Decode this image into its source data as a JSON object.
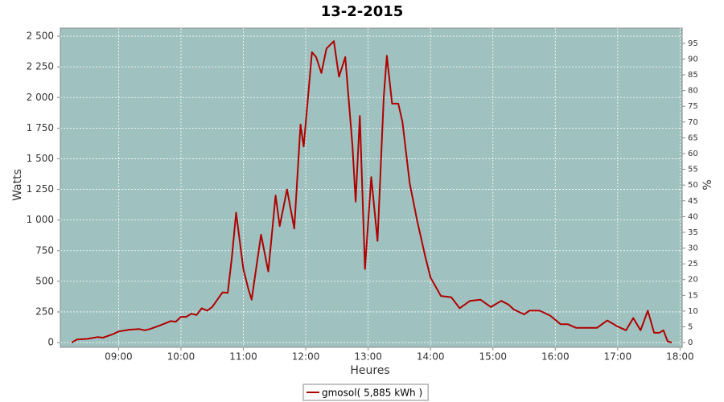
{
  "chart_data": {
    "type": "line",
    "title": "13-2-2015",
    "x_label": "Heures",
    "y_label": "Watts",
    "y2_label": "%",
    "x": [
      "08:15",
      "08:20",
      "08:30",
      "08:40",
      "08:45",
      "08:55",
      "09:00",
      "09:10",
      "09:20",
      "09:25",
      "09:30",
      "09:40",
      "09:50",
      "09:55",
      "10:00",
      "10:05",
      "10:10",
      "10:15",
      "10:20",
      "10:25",
      "10:30",
      "10:35",
      "10:40",
      "10:45",
      "10:49",
      "10:53",
      "11:00",
      "11:05",
      "11:08",
      "11:17",
      "11:24",
      "11:31",
      "11:35",
      "11:42",
      "11:49",
      "11:55",
      "11:58",
      "12:06",
      "12:10",
      "12:15",
      "12:20",
      "12:27",
      "12:32",
      "12:38",
      "12:45",
      "12:48",
      "12:52",
      "12:57",
      "13:03",
      "13:09",
      "13:15",
      "13:18",
      "13:23",
      "13:29",
      "13:33",
      "13:40",
      "13:47",
      "13:55",
      "14:00",
      "14:10",
      "14:20",
      "14:28",
      "14:38",
      "14:48",
      "14:58",
      "15:08",
      "15:15",
      "15:20",
      "15:30",
      "15:35",
      "15:45",
      "15:55",
      "16:05",
      "16:12",
      "16:20",
      "16:40",
      "16:50",
      "17:00",
      "17:08",
      "17:15",
      "17:22",
      "17:29",
      "17:35",
      "17:40",
      "17:44",
      "17:48",
      "17:52"
    ],
    "series": [
      {
        "name": "gmosol( 5,885 kWh )",
        "color": "#b00000",
        "values": [
          0,
          25,
          30,
          45,
          40,
          70,
          90,
          105,
          110,
          100,
          110,
          140,
          175,
          170,
          210,
          210,
          235,
          225,
          280,
          260,
          290,
          350,
          410,
          405,
          700,
          1060,
          600,
          430,
          350,
          880,
          580,
          1200,
          950,
          1250,
          930,
          1780,
          1600,
          2370,
          2330,
          2200,
          2400,
          2460,
          2170,
          2330,
          1600,
          1150,
          1850,
          600,
          1350,
          830,
          2000,
          2340,
          1950,
          1950,
          1800,
          1300,
          1000,
          700,
          530,
          380,
          370,
          280,
          340,
          350,
          290,
          340,
          310,
          270,
          230,
          260,
          260,
          220,
          150,
          150,
          120,
          120,
          180,
          130,
          100,
          200,
          100,
          260,
          80,
          80,
          100,
          10,
          0
        ]
      }
    ],
    "xlim": [
      "08:04",
      "18:02"
    ],
    "xticks": [
      "09:00",
      "10:00",
      "11:00",
      "12:00",
      "13:00",
      "14:00",
      "15:00",
      "16:00",
      "17:00",
      "18:00"
    ],
    "ylim": [
      -39,
      2566
    ],
    "yticks": [
      0,
      250,
      500,
      750,
      {
        "value": 1000,
        "label": "1 000"
      },
      {
        "value": 1250,
        "label": "1 250"
      },
      {
        "value": 1500,
        "label": "1 500"
      },
      {
        "value": 1750,
        "label": "1 750"
      },
      {
        "value": 2000,
        "label": "2 000"
      },
      {
        "value": 2250,
        "label": "2 250"
      },
      {
        "value": 2500,
        "label": "2 500"
      }
    ],
    "y2lim": [
      -1.5,
      99.8
    ],
    "y2ticks": [
      0,
      5,
      10,
      15,
      20,
      25,
      30,
      35,
      40,
      45,
      50,
      55,
      60,
      65,
      70,
      75,
      80,
      85,
      90,
      95
    ],
    "grid": true,
    "plot_background": "#9fc2c0"
  }
}
